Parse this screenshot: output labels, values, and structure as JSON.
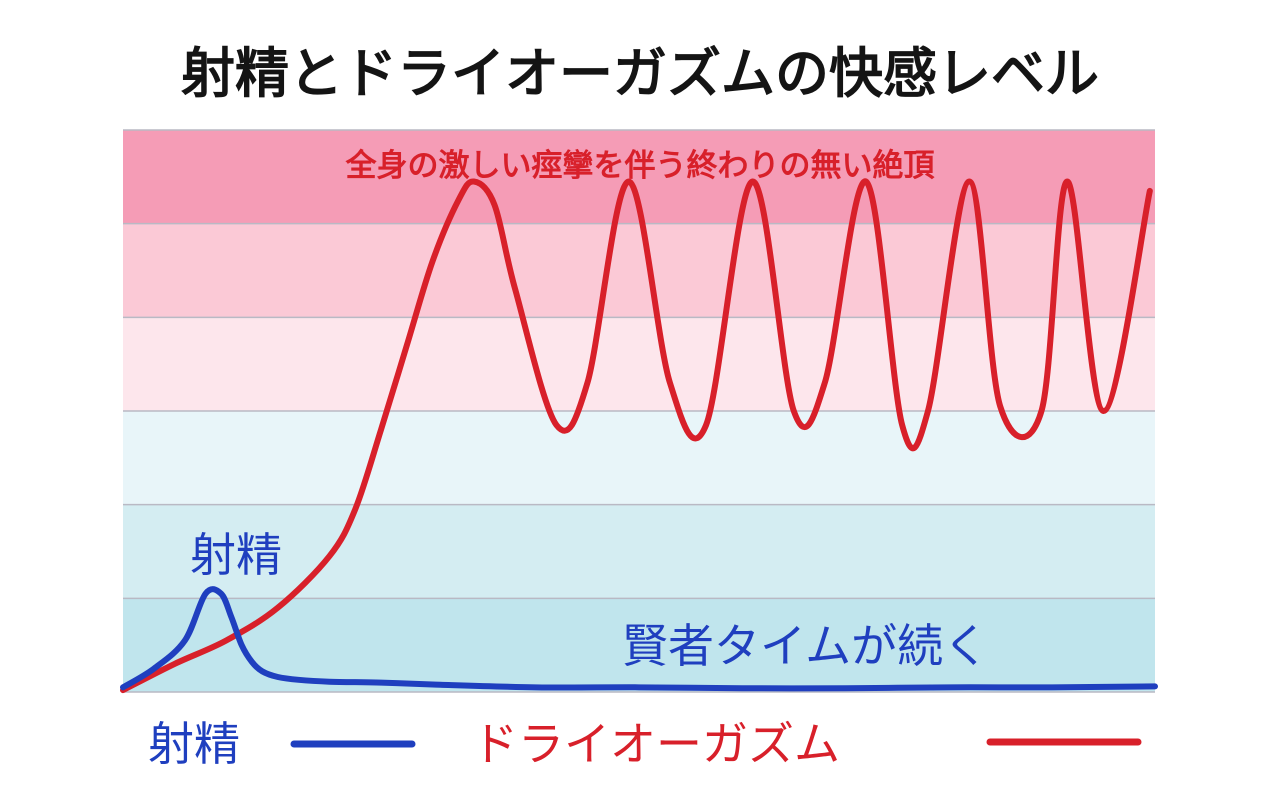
{
  "chart_data": {
    "type": "line",
    "title": "射精とドライオーガズムの快感レベル",
    "xlabel": "",
    "ylabel": "",
    "grid": true,
    "bands": [
      {
        "label": "全身の激しい痙攣を伴う終わりの無い絶頂",
        "color": "#f59cb6"
      },
      {
        "label": "",
        "color": "#fbc9d6"
      },
      {
        "label": "",
        "color": "#fde6ec"
      },
      {
        "label": "",
        "color": "#e8f5f9"
      },
      {
        "label": "",
        "color": "#d4edf2"
      },
      {
        "label": "",
        "color": "#c0e5ed"
      }
    ],
    "band_boundaries": [
      0,
      1,
      2,
      3,
      4,
      5,
      6
    ],
    "xlim": [
      0,
      100
    ],
    "ylim": [
      0,
      6
    ],
    "series": [
      {
        "name": "射精",
        "color": "#1f3fbf",
        "x": [
          0,
          3,
          6,
          8,
          9.5,
          10.5,
          11.5,
          12.5,
          13.5,
          15,
          17,
          20,
          25,
          30,
          40,
          50,
          60,
          70,
          80,
          90,
          100
        ],
        "y": [
          0.05,
          0.25,
          0.55,
          1.05,
          1.05,
          0.8,
          0.5,
          0.32,
          0.22,
          0.16,
          0.13,
          0.11,
          0.1,
          0.08,
          0.05,
          0.05,
          0.04,
          0.04,
          0.05,
          0.05,
          0.06
        ],
        "annotation": "射精",
        "post_label": "賢者タイムが続く"
      },
      {
        "name": "ドライオーガズム",
        "color": "#d8202a",
        "x": [
          0,
          5,
          10,
          15,
          20,
          22.5,
          25,
          27.5,
          30,
          32.5,
          34,
          36,
          38,
          42,
          45,
          49,
          53,
          56.5,
          61,
          65,
          68,
          72,
          75.5,
          78,
          82,
          85,
          89,
          91.5,
          95,
          99.5
        ],
        "y": [
          0.02,
          0.3,
          0.55,
          0.9,
          1.45,
          1.95,
          2.8,
          3.7,
          4.6,
          5.25,
          5.45,
          5.2,
          4.3,
          2.85,
          3.3,
          5.45,
          3.3,
          2.85,
          5.45,
          3.0,
          3.3,
          5.45,
          2.85,
          3.0,
          5.45,
          3.05,
          3.0,
          5.45,
          3.0,
          5.35
        ]
      }
    ],
    "legend": "bottom",
    "legend_entries": [
      {
        "label": "射精",
        "color": "#1f3fbf"
      },
      {
        "label": "ドライオーガズム",
        "color": "#d8202a"
      }
    ]
  }
}
